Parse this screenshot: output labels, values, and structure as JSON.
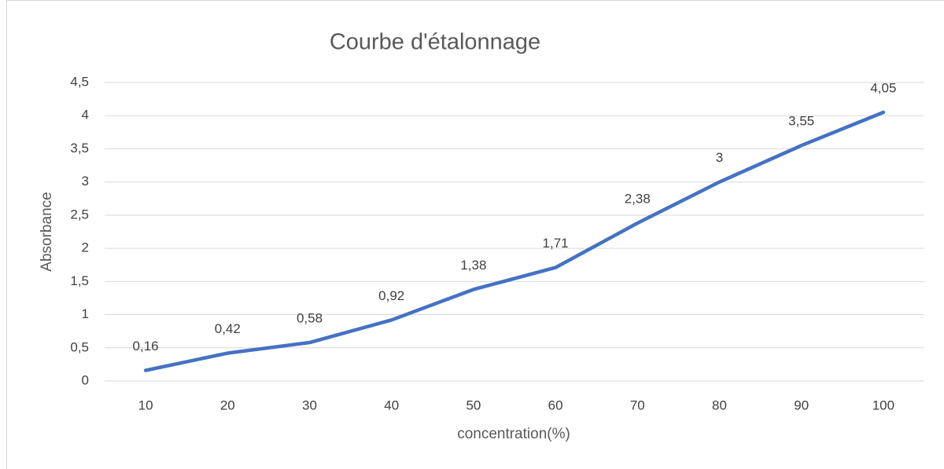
{
  "chart_data": {
    "type": "line",
    "title": "Courbe d'étalonnage",
    "x_label": "concentration(%)",
    "y_label": "Absorbance",
    "x": [
      10,
      20,
      30,
      40,
      50,
      60,
      70,
      80,
      90,
      100
    ],
    "series": [
      {
        "name": "Absorbance",
        "color": "#4472c4",
        "values": [
          0.16,
          0.42,
          0.58,
          0.92,
          1.38,
          1.71,
          2.38,
          3,
          3.55,
          4.05
        ],
        "value_labels": [
          "0,16",
          "0,42",
          "0,58",
          "0,92",
          "1,38",
          "1,71",
          "2,38",
          "3",
          "3,55",
          "4,05"
        ]
      }
    ],
    "xlim": [
      5,
      105
    ],
    "xticks": [
      10,
      20,
      30,
      40,
      50,
      60,
      70,
      80,
      90,
      100
    ],
    "ylim": [
      0,
      4.5
    ],
    "yticks": [
      0,
      {
        "value": 0.5,
        "label": "0,5"
      },
      1,
      {
        "value": 1.5,
        "label": "1,5"
      },
      2,
      {
        "value": 2.5,
        "label": "2,5"
      },
      3,
      {
        "value": 3.5,
        "label": "3,5"
      },
      4,
      {
        "value": 4.5,
        "label": "4,5"
      }
    ],
    "grid": true
  }
}
